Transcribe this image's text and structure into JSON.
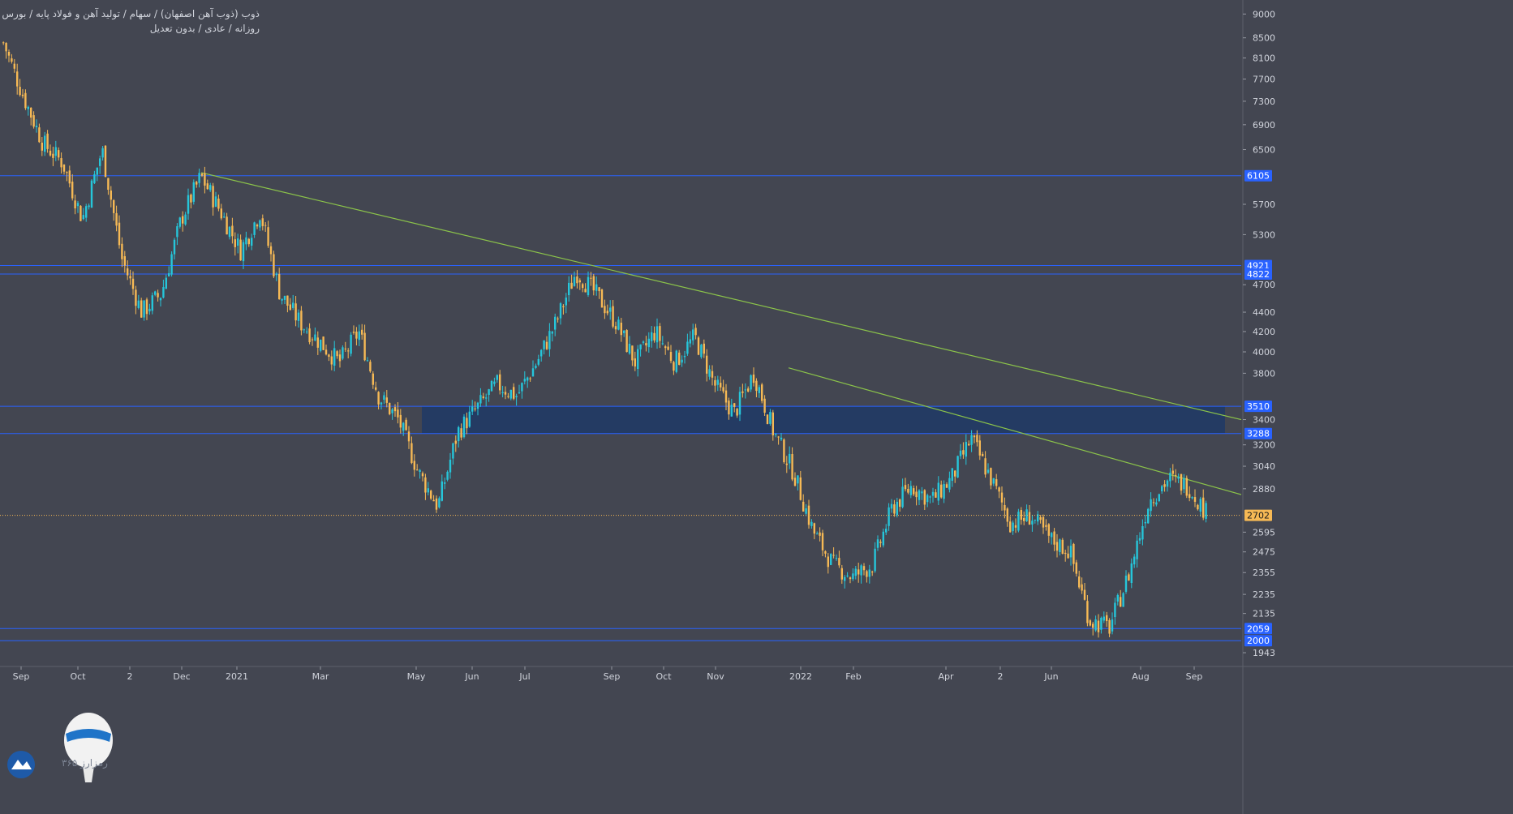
{
  "header": {
    "title": "ذوب (ذوب آهن اصفهان) / سهام / تولید آهن و فولاد پایه / بورس تهران",
    "subtitle": "روزانه / عادی / بدون تعدیل"
  },
  "watermark": {
    "text": "رمزارز ۳۶۵"
  },
  "colors": {
    "background": "#434651",
    "up": "#26c6da",
    "down": "#f6b955",
    "level_line": "#2962ff",
    "trend_line": "#8bc34a",
    "zone_fill": "#1e3a66",
    "current_price": "#f6b955",
    "axis_text": "#d1d4dc"
  },
  "chart_data": {
    "type": "candlestick",
    "title": "ذوب (ذوب آهن اصفهان) / سهام / تولید آهن و فولاد پایه / بورس تهران",
    "y_scale": "log",
    "ylim": [
      1880,
      9200
    ],
    "y_ticks": [
      9000,
      8500,
      8100,
      7700,
      7300,
      6900,
      6500,
      5700,
      5300,
      4700,
      4400,
      4200,
      4000,
      3800,
      3400,
      3200,
      3040,
      2880,
      2595,
      2475,
      2355,
      2235,
      2135,
      1943
    ],
    "x_labels": [
      "Sep",
      "Oct",
      "2",
      "Dec",
      "2021",
      "Mar",
      "May",
      "Jun",
      "Jul",
      "Sep",
      "Oct",
      "Nov",
      "2022",
      "Feb",
      "Apr",
      "2",
      "Jun",
      "Aug",
      "Sep"
    ],
    "horizontal_levels": [
      6105,
      4921,
      4822,
      3510,
      3288,
      2059,
      2000
    ],
    "zone": {
      "from": 3288,
      "to": 3510
    },
    "current_price": 2702,
    "trendlines": [
      {
        "points": [
          [
            6150,
            6150
          ],
          [
            3400,
            3400
          ]
        ]
      },
      {
        "points": [
          [
            3850,
            3850
          ],
          [
            2840,
            2840
          ]
        ]
      }
    ],
    "price_path": [
      {
        "label": "Sep",
        "close": 8400
      },
      {
        "label": "Sep",
        "close": 7400
      },
      {
        "label": "Sep",
        "close": 6600
      },
      {
        "label": "Oct",
        "close": 6300
      },
      {
        "label": "Oct",
        "close": 5500
      },
      {
        "label": "Oct",
        "close": 6500
      },
      {
        "label": "Oct",
        "close": 5000
      },
      {
        "label": "2",
        "close": 4400
      },
      {
        "label": "2",
        "close": 4600
      },
      {
        "label": "Dec",
        "close": 5500
      },
      {
        "label": "Dec",
        "close": 6100
      },
      {
        "label": "Dec",
        "close": 5600
      },
      {
        "label": "2021",
        "close": 5100
      },
      {
        "label": "2021",
        "close": 5600
      },
      {
        "label": "2021",
        "close": 4600
      },
      {
        "label": "Mar",
        "close": 4300
      },
      {
        "label": "Mar",
        "close": 4100
      },
      {
        "label": "Mar",
        "close": 3900
      },
      {
        "label": "Mar",
        "close": 4200
      },
      {
        "label": "May",
        "close": 3600
      },
      {
        "label": "May",
        "close": 3400
      },
      {
        "label": "May",
        "close": 3000
      },
      {
        "label": "Jun",
        "close": 2760
      },
      {
        "label": "Jun",
        "close": 3300
      },
      {
        "label": "Jun",
        "close": 3500
      },
      {
        "label": "Jul",
        "close": 3700
      },
      {
        "label": "Jul",
        "close": 3600
      },
      {
        "label": "Jul",
        "close": 3900
      },
      {
        "label": "Sep",
        "close": 4300
      },
      {
        "label": "Sep",
        "close": 4850
      },
      {
        "label": "Sep",
        "close": 4600
      },
      {
        "label": "Oct",
        "close": 4300
      },
      {
        "label": "Oct",
        "close": 3900
      },
      {
        "label": "Oct",
        "close": 4200
      },
      {
        "label": "Nov",
        "close": 3900
      },
      {
        "label": "Nov",
        "close": 4150
      },
      {
        "label": "Nov",
        "close": 3700
      },
      {
        "label": "Nov",
        "close": 3450
      },
      {
        "label": "2022",
        "close": 3800
      },
      {
        "label": "2022",
        "close": 3300
      },
      {
        "label": "2022",
        "close": 3000
      },
      {
        "label": "Feb",
        "close": 2600
      },
      {
        "label": "Feb",
        "close": 2400
      },
      {
        "label": "Feb",
        "close": 2330
      },
      {
        "label": "Feb",
        "close": 2400
      },
      {
        "label": "Apr",
        "close": 2750
      },
      {
        "label": "Apr",
        "close": 2900
      },
      {
        "label": "Apr",
        "close": 2800
      },
      {
        "label": "2",
        "close": 2950
      },
      {
        "label": "2",
        "close": 3250
      },
      {
        "label": "2",
        "close": 2950
      },
      {
        "label": "Jun",
        "close": 2650
      },
      {
        "label": "Jun",
        "close": 2700
      },
      {
        "label": "Jun",
        "close": 2550
      },
      {
        "label": "Jun",
        "close": 2480
      },
      {
        "label": "Aug",
        "close": 2100
      },
      {
        "label": "Aug",
        "close": 2065
      },
      {
        "label": "Aug",
        "close": 2350
      },
      {
        "label": "Aug",
        "close": 2800
      },
      {
        "label": "Sep",
        "close": 2950
      },
      {
        "label": "Sep",
        "close": 2900
      },
      {
        "label": "Sep",
        "close": 2702
      }
    ]
  }
}
